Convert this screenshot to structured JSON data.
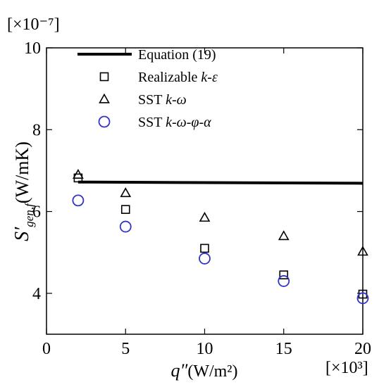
{
  "chart_data": {
    "type": "scatter",
    "x_multiplier": "[×10³]",
    "y_multiplier": "[×10⁻⁷]",
    "xlabel": {
      "symbol": "q″",
      "unit": "(W/m²)"
    },
    "ylabel": {
      "symbol": "S′",
      "subscript": "gen,f",
      "unit": "(W/mK)"
    },
    "xlim": [
      0,
      20
    ],
    "ylim": [
      3,
      10
    ],
    "xticks": [
      0,
      5,
      10,
      15,
      20
    ],
    "yticks": [
      4,
      6,
      8,
      10
    ],
    "x_tick_labels": [
      "0",
      "5",
      "10",
      "15",
      "20"
    ],
    "y_tick_labels": [
      "4",
      "6",
      "8",
      "10"
    ],
    "legend_position": "top-left",
    "series": [
      {
        "name": "Equation (19)",
        "marker": "line",
        "color": "#000000",
        "x": [
          2,
          20
        ],
        "y": [
          6.72,
          6.69
        ]
      },
      {
        "name": "Realizable k-ε",
        "marker": "square",
        "color": "#000000",
        "x": [
          2,
          5,
          10,
          15,
          20
        ],
        "y": [
          6.82,
          6.05,
          5.1,
          4.45,
          3.98
        ]
      },
      {
        "name": "SST k-ω",
        "marker": "triangle",
        "color": "#000000",
        "x": [
          2,
          5,
          10,
          15,
          20
        ],
        "y": [
          6.9,
          6.45,
          5.85,
          5.4,
          5.02
        ]
      },
      {
        "name": "SST k-ω-φ-α",
        "marker": "circle",
        "color": "#3333cc",
        "x": [
          2,
          5,
          10,
          15,
          20
        ],
        "y": [
          6.27,
          5.63,
          4.85,
          4.3,
          3.88
        ]
      }
    ]
  }
}
